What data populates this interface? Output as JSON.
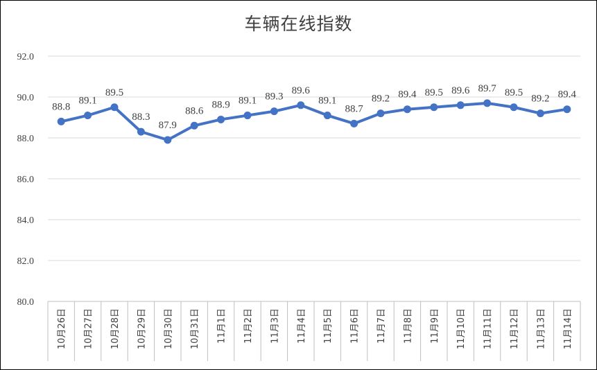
{
  "chart_data": {
    "type": "line",
    "title": "车辆在线指数",
    "xlabel": "",
    "ylabel": "",
    "ylim": [
      80.0,
      92.0
    ],
    "yticks": [
      "80.0",
      "82.0",
      "84.0",
      "86.0",
      "88.0",
      "90.0",
      "92.0"
    ],
    "grid": "horizontal",
    "legend": "none",
    "categories": [
      "10月26日",
      "10月27日",
      "10月28日",
      "10月29日",
      "10月30日",
      "10月31日",
      "11月1日",
      "11月2日",
      "11月3日",
      "11月4日",
      "11月5日",
      "11月6日",
      "11月7日",
      "11月8日",
      "11月9日",
      "11月10日",
      "11月11日",
      "11月12日",
      "11月13日",
      "11月14日"
    ],
    "series": [
      {
        "values": [
          88.8,
          89.1,
          89.5,
          88.3,
          87.9,
          88.6,
          88.9,
          89.1,
          89.3,
          89.6,
          89.1,
          88.7,
          89.2,
          89.4,
          89.5,
          89.6,
          89.7,
          89.5,
          89.2,
          89.4
        ],
        "labels": [
          "88.8",
          "89.1",
          "89.5",
          "88.3",
          "87.9",
          "88.6",
          "88.9",
          "89.1",
          "89.3",
          "89.6",
          "89.1",
          "88.7",
          "89.2",
          "89.4",
          "89.5",
          "89.6",
          "89.7",
          "89.5",
          "89.2",
          "89.4"
        ],
        "color": "#4472C4"
      }
    ],
    "colors": {
      "line": "#4472C4",
      "grid": "#D9D9D9",
      "axis": "#BFBFBF",
      "text": "#404040"
    }
  }
}
